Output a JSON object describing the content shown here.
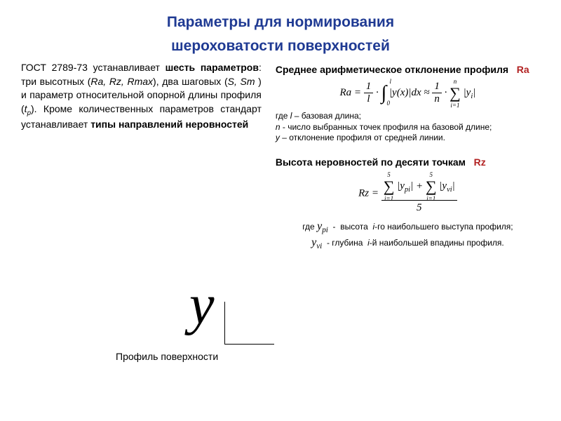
{
  "title_line1": "Параметры для нормирования",
  "title_line2": "шероховатости поверхностей",
  "left": {
    "para_html": "ГОСТ 2789-73 устанавливает <b>шесть параметров</b>: три высотных (<i>Ra, Rz, Rmax</i>), два шаговых (<i>S, Sm</i> ) и параметр относительной опорной длины профиля (<i>t<sub>p</sub></i>). Кроме количественных параметров стандарт устанавливает <b>типы направлений неровностей</b>",
    "profile_caption": "Профиль поверхности",
    "y_glyph": "y"
  },
  "right": {
    "ra_head_text": "Среднее арифметическое отклонение профиля",
    "ra_symbol": "Ra",
    "ra_formula": {
      "lhs": "Ra",
      "frac1_num": "1",
      "frac1_den": "l",
      "int_top": "l",
      "int_bot": "0",
      "int_body": "|y(x)|dx",
      "approx": "≈",
      "frac2_num": "1",
      "frac2_den": "n",
      "sum_top": "n",
      "sum_bot": "i=1",
      "sum_body": "|y<sub>i</sub>|"
    },
    "ra_defs": [
      "где <i>l</i> – базовая длина;",
      "<i>n</i> - число выбранных точек профиля на базовой длине;",
      "<i>y</i> – отклонение профиля от средней линии."
    ],
    "rz_head_text": "Высота неровностей по десяти точкам",
    "rz_symbol": "Rz",
    "rz_formula": {
      "lhs": "Rz",
      "sum1_top": "5",
      "sum1_bot": "i=1",
      "sum1_body": "|y<sub>pi</sub>|",
      "plus": "+",
      "sum2_top": "5",
      "sum2_bot": "i=1",
      "sum2_body": "|y<sub>vi</sub>|",
      "den": "5"
    },
    "rz_defs": [
      "где <i style='font-family:Times New Roman;font-size:16px'>y<sub>pi</sub></i> &nbsp;-&nbsp; высота &nbsp;<i>i</i>-го наибольшего выступа профиля;",
      "<i style='font-family:Times New Roman;font-size:16px'>y<sub>vi</sub></i> &nbsp;- глубина &nbsp;<i>i</i>-й наибольшей впадины профиля."
    ]
  },
  "colors": {
    "title": "#1f3a93",
    "accent": "#b22222",
    "text": "#000000",
    "bg": "#ffffff"
  }
}
